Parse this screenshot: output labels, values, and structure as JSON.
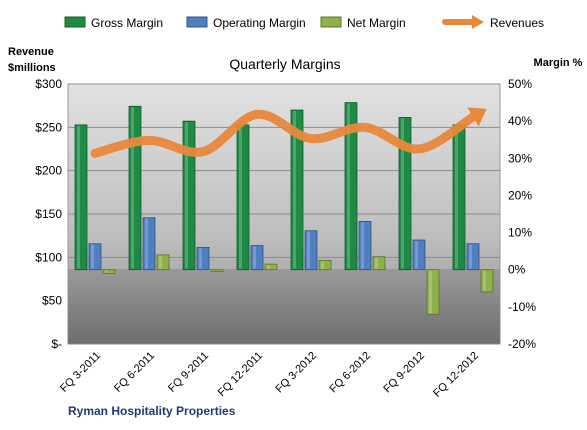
{
  "chart_data": {
    "type": "bar",
    "title": "Quarterly Margins",
    "company": "Ryman  Hospitality Properties",
    "left_axis": {
      "label_line1": "Revenue",
      "label_line2": "$millions",
      "range": [
        0,
        300
      ],
      "ticks": [
        0,
        50,
        100,
        150,
        200,
        250,
        300
      ],
      "tick_labels": [
        "$-",
        "$50",
        "$100",
        "$150",
        "$200",
        "$250",
        "$300"
      ]
    },
    "right_axis": {
      "label": "Margin %",
      "range": [
        -20,
        50
      ],
      "ticks": [
        -20,
        -10,
        0,
        10,
        20,
        30,
        40,
        50
      ],
      "tick_labels": [
        "-20%",
        "-10%",
        "0%",
        "10%",
        "20%",
        "30%",
        "40%",
        "50%"
      ]
    },
    "categories": [
      "FQ 3-2011",
      "FQ 6-2011",
      "FQ 9-2011",
      "FQ 12-2011",
      "FQ 3-2012",
      "FQ 6-2012",
      "FQ 9-2012",
      "FQ 12-2012"
    ],
    "series": [
      {
        "name": "Gross Margin",
        "axis": "right",
        "kind": "bar",
        "color": "#1f8a45",
        "values": [
          39,
          44,
          40,
          39,
          43,
          45,
          41,
          39
        ]
      },
      {
        "name": "Operating Margin",
        "axis": "right",
        "kind": "bar",
        "color": "#4f7fbf",
        "values": [
          7,
          14,
          6,
          6.5,
          10.5,
          13,
          8,
          7
        ]
      },
      {
        "name": "Net Margin",
        "axis": "right",
        "kind": "bar",
        "color": "#8fb04a",
        "values": [
          -1,
          4,
          -0.5,
          1.5,
          2.5,
          3.5,
          -12,
          -6
        ]
      },
      {
        "name": "Revenues",
        "axis": "left",
        "kind": "line",
        "color": "#e8883a",
        "values": [
          220,
          235,
          222,
          265,
          237,
          250,
          225,
          262
        ]
      }
    ],
    "grid": true,
    "legend": "top"
  }
}
